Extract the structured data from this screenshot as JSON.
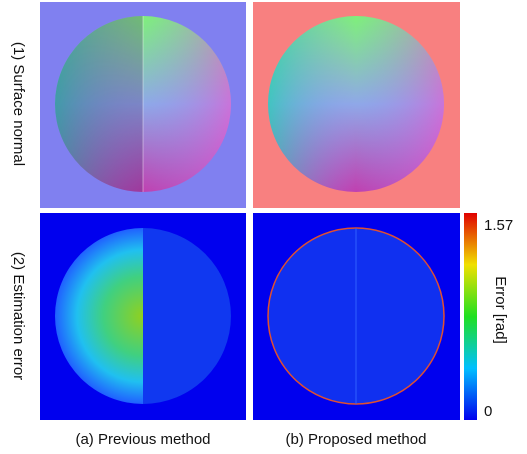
{
  "rows": [
    {
      "label": "(1) Surface normal"
    },
    {
      "label": "(2) Estimation error"
    }
  ],
  "columns": [
    {
      "label": "(a) Previous method"
    },
    {
      "label": "(b) Proposed method"
    }
  ],
  "colorbar": {
    "title": "Error [rad]",
    "max": "1.57",
    "min": "0"
  }
}
